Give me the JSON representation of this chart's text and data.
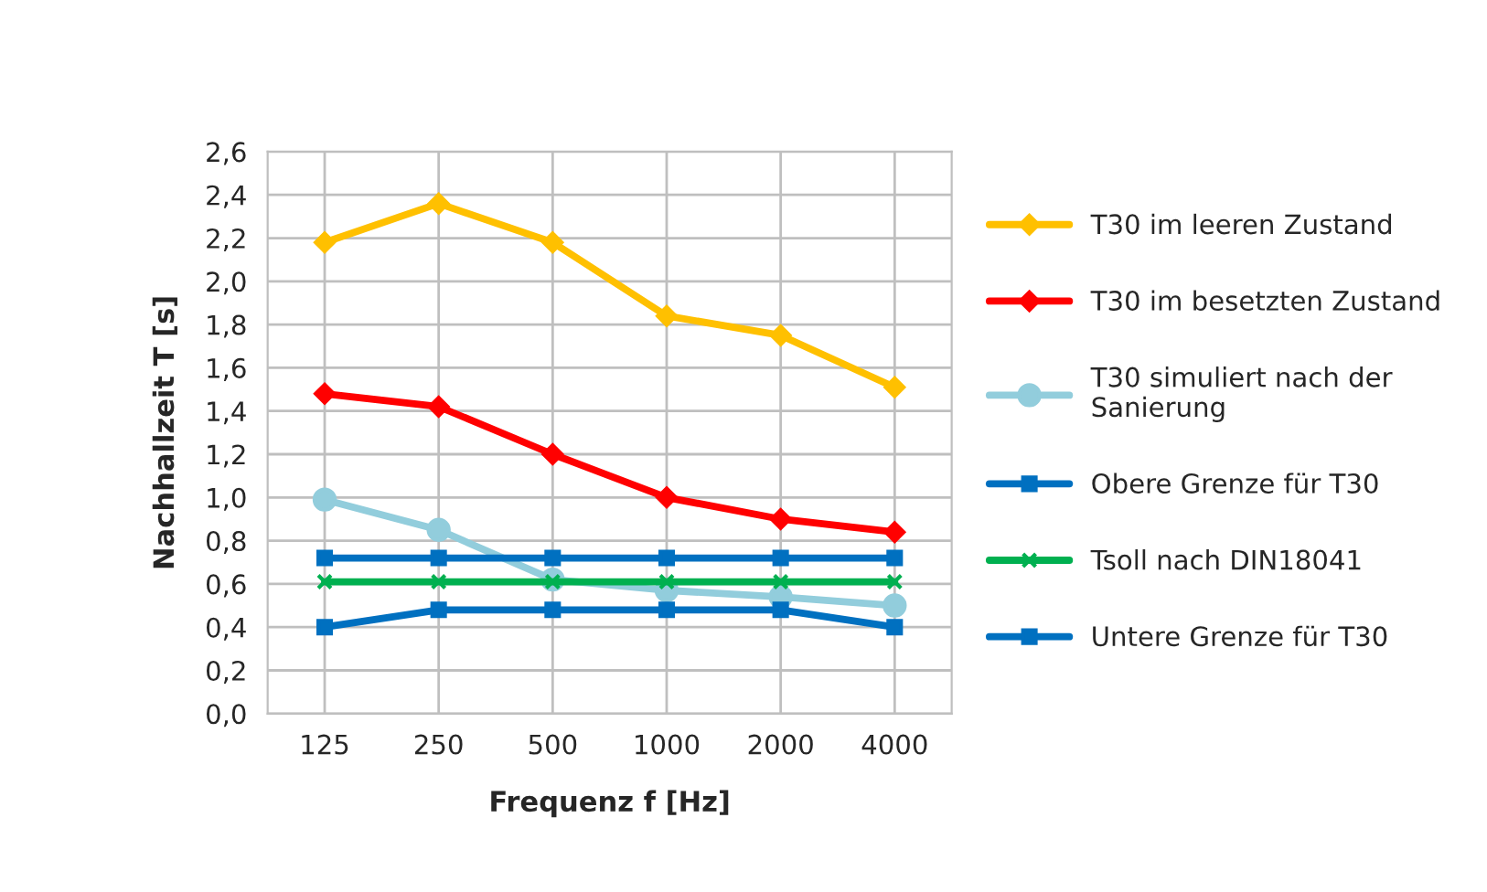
{
  "chart_data": {
    "type": "line",
    "xlabel": "Frequenz f [Hz]",
    "ylabel": "Nachhallzeit T [s]",
    "categories": [
      "125",
      "250",
      "500",
      "1000",
      "2000",
      "4000"
    ],
    "ylim": [
      0,
      2.6
    ],
    "yticks": [
      {
        "value": 0,
        "label": "0,0"
      },
      {
        "value": 0.2,
        "label": "0,2"
      },
      {
        "value": 0.4,
        "label": "0,4"
      },
      {
        "value": 0.6,
        "label": "0,6"
      },
      {
        "value": 0.8,
        "label": "0,8"
      },
      {
        "value": 1.0,
        "label": "1,0"
      },
      {
        "value": 1.2,
        "label": "1,2"
      },
      {
        "value": 1.4,
        "label": "1,4"
      },
      {
        "value": 1.6,
        "label": "1,6"
      },
      {
        "value": 1.8,
        "label": "1,8"
      },
      {
        "value": 2.0,
        "label": "2,0"
      },
      {
        "value": 2.2,
        "label": "2,2"
      },
      {
        "value": 2.4,
        "label": "2,4"
      },
      {
        "value": 2.6,
        "label": "2,6"
      }
    ],
    "grid": true,
    "legend": "right",
    "series": [
      {
        "name": "T30 im leeren Zustand",
        "color": "#ffc000",
        "marker": "diamond",
        "values": [
          2.18,
          2.36,
          2.18,
          1.84,
          1.75,
          1.51
        ]
      },
      {
        "name": "T30 im besetzten Zustand",
        "color": "#ff0000",
        "marker": "diamond",
        "values": [
          1.48,
          1.42,
          1.2,
          1.0,
          0.9,
          0.84
        ]
      },
      {
        "name": "T30 simuliert nach der\nSanierung",
        "color": "#92cddc",
        "marker": "circle",
        "values": [
          0.99,
          0.85,
          0.62,
          0.57,
          0.54,
          0.5
        ]
      },
      {
        "name": "Obere Grenze für T30",
        "color": "#0070c0",
        "marker": "square",
        "values": [
          0.72,
          0.72,
          0.72,
          0.72,
          0.72,
          0.72
        ]
      },
      {
        "name": "Tsoll nach DIN18041",
        "color": "#00b050",
        "marker": "cross",
        "values": [
          0.61,
          0.61,
          0.61,
          0.61,
          0.61,
          0.61
        ]
      },
      {
        "name": "Untere Grenze für T30",
        "color": "#0070c0",
        "marker": "square",
        "values": [
          0.4,
          0.48,
          0.48,
          0.48,
          0.48,
          0.4
        ]
      }
    ]
  }
}
